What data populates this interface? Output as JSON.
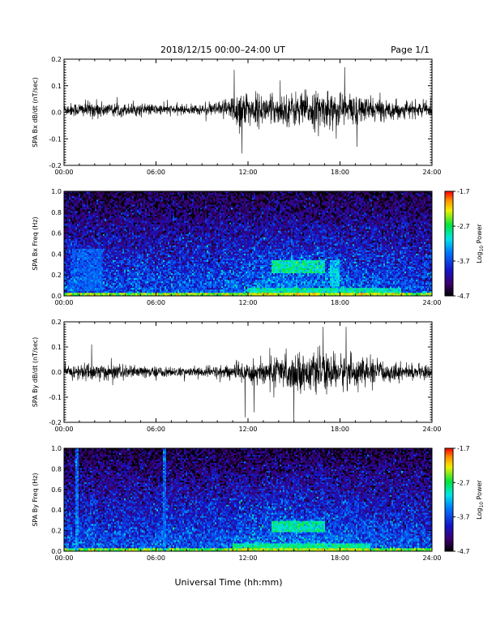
{
  "header": {
    "title": "2018/12/15   00:00–24:00 UT",
    "page": "Page 1/1"
  },
  "colorbar_title_main": "Log",
  "colorbar_title_sub": "10",
  "colorbar_title_end": " Power",
  "chart_data": [
    {
      "type": "line",
      "ylabel": "SPA Bx dB/dt (nT/sec)",
      "xlabel": "",
      "xlim": [
        0,
        24
      ],
      "ylim": [
        -0.2,
        0.2
      ],
      "x_ticks": [
        "00:00",
        "06:00",
        "12:00",
        "18:00",
        "24:00"
      ],
      "y_ticks": [
        "0.2",
        "0.1",
        "0.0",
        "-0.1",
        "-0.2"
      ],
      "envelope": {
        "x_hours": [
          0,
          1,
          2,
          3,
          4,
          5,
          6,
          7,
          8,
          9,
          10,
          11,
          11.5,
          12,
          13,
          14,
          15,
          16,
          17,
          18,
          19,
          20,
          21,
          22,
          23,
          24
        ],
        "amplitude": [
          0.025,
          0.03,
          0.035,
          0.03,
          0.025,
          0.025,
          0.022,
          0.02,
          0.02,
          0.022,
          0.03,
          0.06,
          0.1,
          0.07,
          0.06,
          0.06,
          0.07,
          0.075,
          0.07,
          0.08,
          0.06,
          0.05,
          0.04,
          0.035,
          0.03,
          0.03
        ],
        "offset": 0.01
      },
      "peaks": [
        {
          "x": 11.1,
          "y": 0.16
        },
        {
          "x": 11.6,
          "y": -0.155
        },
        {
          "x": 18.3,
          "y": 0.17
        },
        {
          "x": 19.1,
          "y": -0.13
        },
        {
          "x": 16.6,
          "y": -0.09
        },
        {
          "x": 14.1,
          "y": 0.12
        }
      ]
    },
    {
      "type": "heatmap",
      "ylabel": "SPA Bx Freq (Hz)",
      "xlabel": "",
      "xlim": [
        0,
        24
      ],
      "ylim": [
        0,
        1
      ],
      "x_ticks": [
        "00:00",
        "06:00",
        "12:00",
        "18:00",
        "24:00"
      ],
      "y_ticks": [
        "1.0",
        "0.8",
        "0.6",
        "0.4",
        "0.2",
        "0.0"
      ],
      "colorbar": {
        "range": [
          -4.7,
          -1.7
        ],
        "ticks": [
          "-1.7",
          "-2.7",
          "-3.7",
          "-4.7"
        ]
      },
      "features": [
        {
          "t0": 13.5,
          "t1": 17.0,
          "f0": 0.22,
          "f1": 0.34,
          "value": -2.7
        },
        {
          "t0": 12.0,
          "t1": 22.0,
          "f0": 0.0,
          "f1": 0.08,
          "value": -2.8
        },
        {
          "t0": 0.0,
          "t1": 24.0,
          "f0": 0.0,
          "f1": 0.03,
          "value": -2.1
        },
        {
          "t0": 0.5,
          "t1": 2.5,
          "f0": 0.05,
          "f1": 0.45,
          "value": -3.5
        },
        {
          "t0": 17.3,
          "t1": 18.0,
          "f0": 0.1,
          "f1": 0.35,
          "value": -3.0
        }
      ]
    },
    {
      "type": "line",
      "ylabel": "SPA By dB/dt (nT/sec)",
      "xlabel": "",
      "xlim": [
        0,
        24
      ],
      "ylim": [
        -0.2,
        0.2
      ],
      "x_ticks": [
        "00:00",
        "06:00",
        "12:00",
        "18:00",
        "24:00"
      ],
      "y_ticks": [
        "0.2",
        "0.1",
        "0.0",
        "-0.1",
        "-0.2"
      ],
      "envelope": {
        "x_hours": [
          0,
          1,
          2,
          3,
          4,
          5,
          6,
          7,
          8,
          9,
          10,
          11,
          12,
          13,
          14,
          15,
          16,
          17,
          18,
          19,
          20,
          21,
          22,
          23,
          24
        ],
        "amplitude": [
          0.025,
          0.035,
          0.04,
          0.035,
          0.03,
          0.025,
          0.025,
          0.02,
          0.02,
          0.022,
          0.028,
          0.035,
          0.05,
          0.06,
          0.07,
          0.075,
          0.08,
          0.07,
          0.075,
          0.065,
          0.055,
          0.045,
          0.035,
          0.03,
          0.028
        ],
        "offset": 0.0
      },
      "peaks": [
        {
          "x": 1.8,
          "y": 0.11
        },
        {
          "x": 11.8,
          "y": -0.18
        },
        {
          "x": 16.9,
          "y": 0.18
        },
        {
          "x": 18.4,
          "y": 0.18
        },
        {
          "x": 15.0,
          "y": -0.2
        },
        {
          "x": 12.4,
          "y": -0.16
        }
      ]
    },
    {
      "type": "heatmap",
      "ylabel": "SPA By Freq (Hz)",
      "xlabel": "Universal Time (hh:mm)",
      "xlim": [
        0,
        24
      ],
      "ylim": [
        0,
        1
      ],
      "x_ticks": [
        "00:00",
        "06:00",
        "12:00",
        "18:00",
        "24:00"
      ],
      "y_ticks": [
        "1.0",
        "0.8",
        "0.6",
        "0.4",
        "0.2",
        "0.0"
      ],
      "colorbar": {
        "range": [
          -4.7,
          -1.7
        ],
        "ticks": [
          "-1.7",
          "-2.7",
          "-3.7",
          "-4.7"
        ]
      },
      "features": [
        {
          "t0": 13.5,
          "t1": 17.0,
          "f0": 0.18,
          "f1": 0.3,
          "value": -2.7
        },
        {
          "t0": 11.0,
          "t1": 20.0,
          "f0": 0.0,
          "f1": 0.08,
          "value": -2.7
        },
        {
          "t0": 0.0,
          "t1": 24.0,
          "f0": 0.0,
          "f1": 0.03,
          "value": -2.2
        },
        {
          "t0": 0.7,
          "t1": 0.9,
          "f0": 0.0,
          "f1": 1.0,
          "value": -3.3
        },
        {
          "t0": 6.4,
          "t1": 6.7,
          "f0": 0.0,
          "f1": 1.0,
          "value": -3.4
        }
      ]
    }
  ]
}
